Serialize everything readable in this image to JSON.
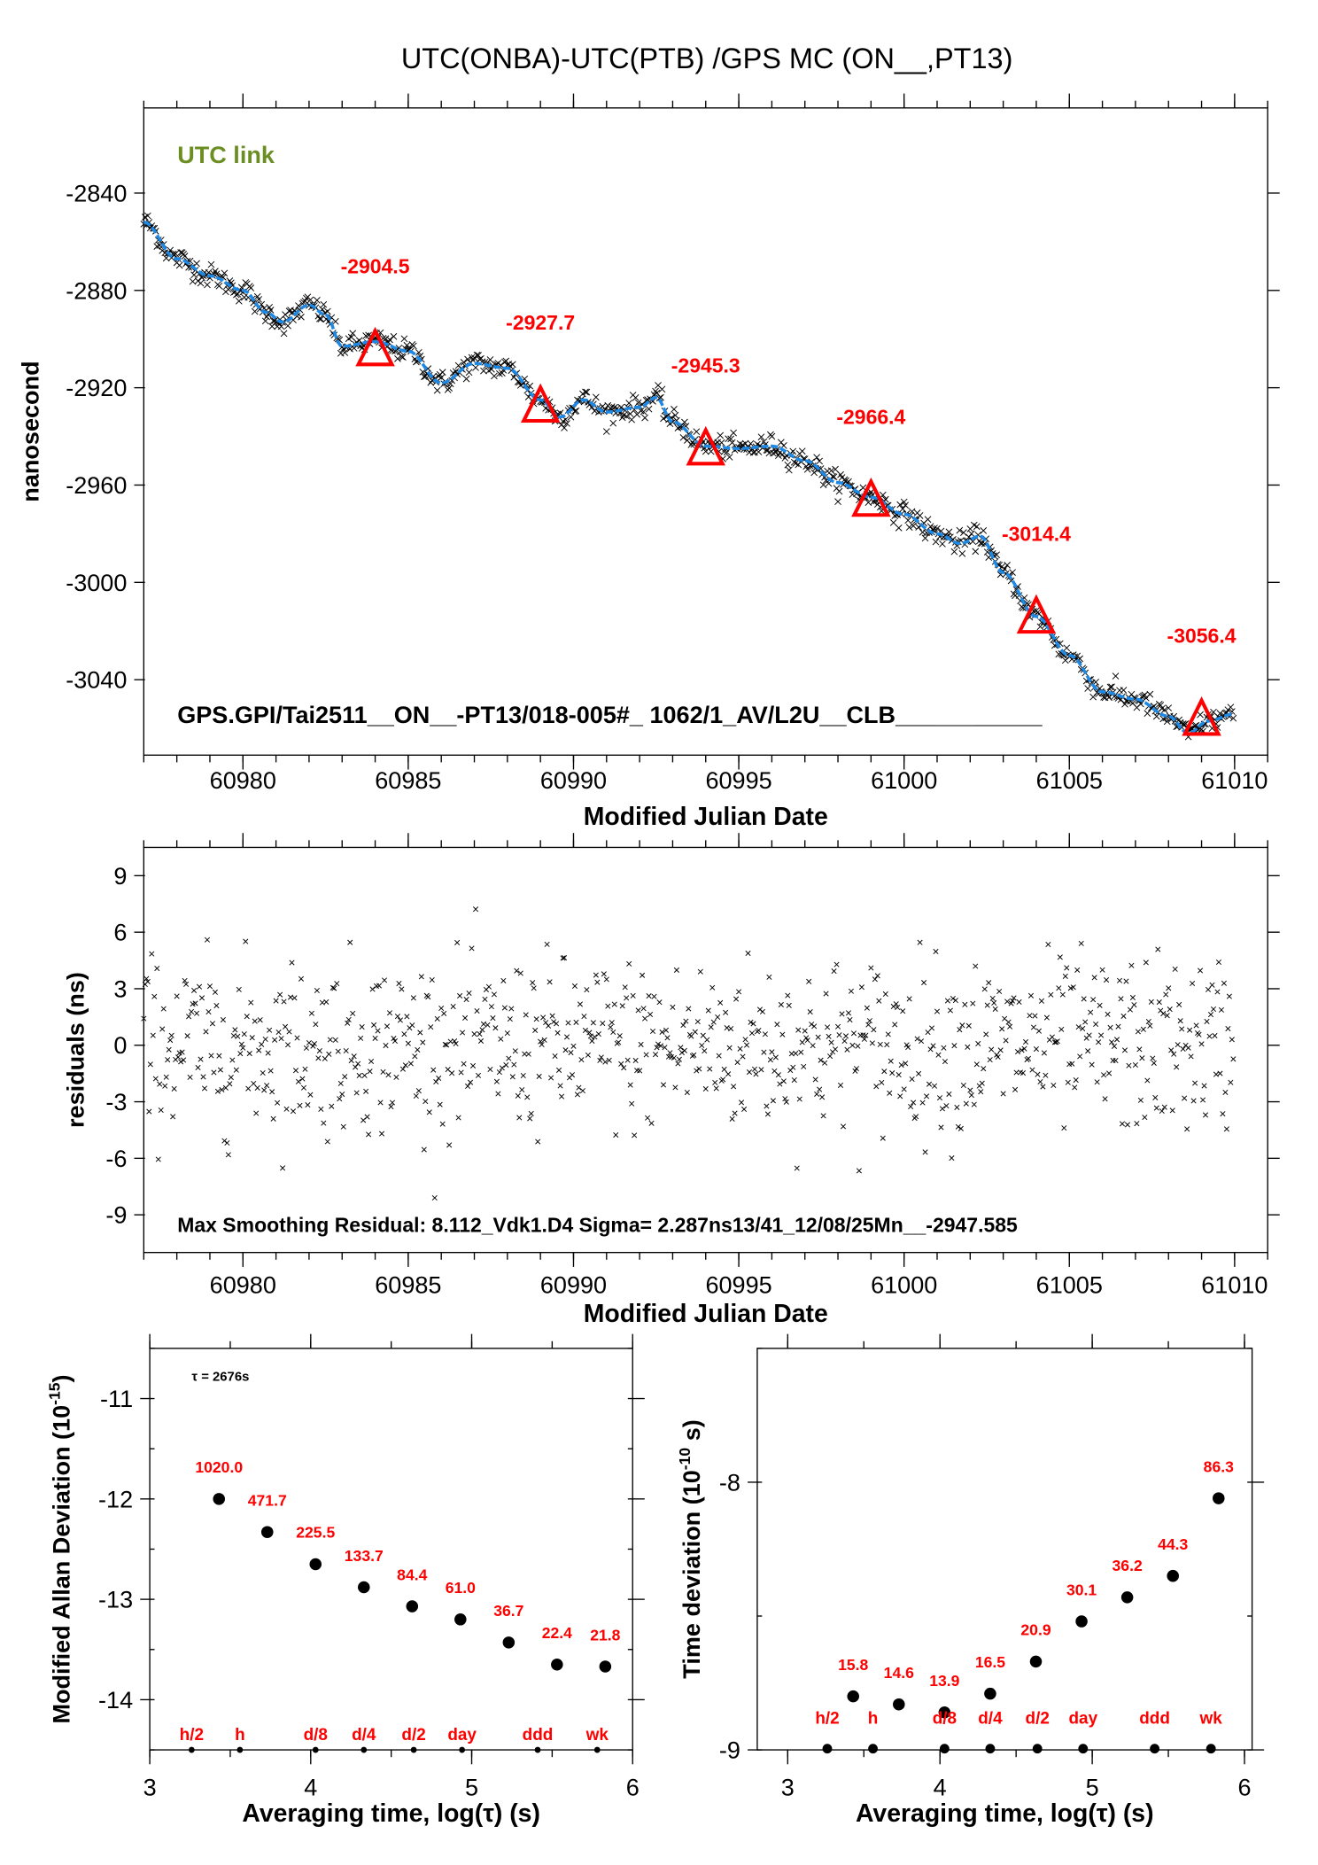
{
  "title": "UTC(ONBA)-UTC(PTB)  /GPS  MC  (ON__,PT13)",
  "colors": {
    "raw": "#000000",
    "smooth": "#1e88e5",
    "marker": "#ff0000",
    "label": "#ff0000",
    "link": "#6b8e23"
  },
  "chart_data": [
    {
      "type": "scatter",
      "legend_text": "UTC link",
      "footer": "GPS.GPI/Tai2511__ON__-PT13/018-005#_  1062/1_AV/L2U__CLB___________",
      "xlabel": "Modified Julian Date",
      "ylabel": "nanosecond",
      "xlim": [
        60977,
        61011
      ],
      "ylim": [
        -3071,
        -2805
      ],
      "xticks": [
        "60980",
        "60985",
        "60990",
        "60995",
        "61000",
        "61005",
        "61010"
      ],
      "yticks": [
        "-2840",
        "-2880",
        "-2920",
        "-2960",
        "-3000",
        "-3040"
      ],
      "smoothed_curve": [
        [
          60977,
          -2852
        ],
        [
          60978,
          -2867
        ],
        [
          60979,
          -2874
        ],
        [
          60980,
          -2880
        ],
        [
          60980.7,
          -2889
        ],
        [
          60981.2,
          -2893
        ],
        [
          60982,
          -2886
        ],
        [
          60982.5,
          -2890
        ],
        [
          60983,
          -2903
        ],
        [
          60984,
          -2901
        ],
        [
          60985,
          -2905
        ],
        [
          60986,
          -2918
        ],
        [
          60987,
          -2910
        ],
        [
          60988,
          -2912
        ],
        [
          60989,
          -2925
        ],
        [
          60989.6,
          -2932
        ],
        [
          60990.3,
          -2925
        ],
        [
          60991,
          -2930
        ],
        [
          60992,
          -2928
        ],
        [
          60992.5,
          -2924
        ],
        [
          60993,
          -2934
        ],
        [
          60994,
          -2944
        ],
        [
          60995,
          -2945
        ],
        [
          60996,
          -2944
        ],
        [
          60997,
          -2950
        ],
        [
          60998,
          -2959
        ],
        [
          60999,
          -2965
        ],
        [
          61000,
          -2972
        ],
        [
          61001,
          -2980
        ],
        [
          61001.7,
          -2984
        ],
        [
          61002.3,
          -2981
        ],
        [
          61003,
          -2996
        ],
        [
          61004,
          -3014
        ],
        [
          61005,
          -3030
        ],
        [
          61006,
          -3045
        ],
        [
          61007,
          -3048
        ],
        [
          61008,
          -3055
        ],
        [
          61008.6,
          -3062
        ],
        [
          61009.2,
          -3057
        ],
        [
          61010,
          -3054
        ]
      ],
      "markers": {
        "x": [
          60984,
          60989,
          60994,
          60999,
          61004,
          61009
        ],
        "y": [
          -2904.5,
          -2927.7,
          -2945.3,
          -2966.4,
          -3014.4,
          -3056.4
        ]
      },
      "marker_labels": [
        "-2904.5",
        "-2927.7",
        "-2945.3",
        "-2966.4",
        "-3014.4",
        "-3056.4"
      ]
    },
    {
      "type": "scatter",
      "annotation": "Max Smoothing Residual: 8.112_Vdk1.D4  Sigma= 2.287ns13/41_12/08/25Mn__-2947.585",
      "xlabel": "Modified Julian Date",
      "ylabel": "residuals (ns)",
      "xlim": [
        60977,
        61011
      ],
      "ylim": [
        -11,
        10.5
      ],
      "xticks": [
        "60980",
        "60985",
        "60990",
        "60995",
        "61000",
        "61005",
        "61010"
      ],
      "yticks": [
        "9",
        "6",
        "3",
        "0",
        "-3",
        "-6",
        "-9"
      ],
      "sigma": 2.287,
      "max_residual": 8.112
    },
    {
      "type": "scatter",
      "tau_label": "τ = 2676s",
      "xlabel": "Averaging time, log(τ) (s)",
      "ylabel": "Modified Allan Deviation (10",
      "ylabel_sup": "-15",
      "ylabel_end": ")",
      "xlim": [
        3,
        6
      ],
      "ylim": [
        -14.5,
        -10.5
      ],
      "xticks": [
        "3",
        "4",
        "5",
        "6"
      ],
      "yticks": [
        "-11",
        "-12",
        "-13",
        "-14"
      ],
      "x": [
        3.43,
        3.73,
        4.03,
        4.33,
        4.63,
        4.93,
        5.23,
        5.53,
        5.83
      ],
      "y": [
        -12.0,
        -12.33,
        -12.65,
        -12.88,
        -13.07,
        -13.2,
        -13.43,
        -13.65,
        -13.67
      ],
      "point_labels": [
        "1020.0",
        "471.7",
        "225.5",
        "133.7",
        "84.4",
        "61.0",
        "36.7",
        "22.4",
        "21.8"
      ],
      "interval_x": [
        3.26,
        3.56,
        4.03,
        4.33,
        4.64,
        4.94,
        5.41,
        5.78
      ],
      "interval_labels": [
        "h/2",
        "h",
        "d/8",
        "d/4",
        "d/2",
        "day",
        "ddd",
        "wk"
      ]
    },
    {
      "type": "scatter",
      "xlabel": "Averaging time, log(τ) (s)",
      "ylabel": "Time deviation (10",
      "ylabel_sup": "-10",
      "ylabel_end": " s)",
      "xlim": [
        2.8,
        6.05
      ],
      "ylim": [
        -9,
        -7.5
      ],
      "xticks": [
        "3",
        "4",
        "5",
        "6"
      ],
      "yticks": [
        "-8",
        "-9"
      ],
      "x": [
        3.43,
        3.73,
        4.03,
        4.33,
        4.63,
        4.93,
        5.23,
        5.53,
        5.83
      ],
      "y": [
        -8.8,
        -8.83,
        -8.86,
        -8.79,
        -8.67,
        -8.52,
        -8.43,
        -8.35,
        -8.06
      ],
      "point_labels": [
        "15.8",
        "14.6",
        "13.9",
        "16.5",
        "20.9",
        "30.1",
        "36.2",
        "44.3",
        "86.3"
      ],
      "interval_x": [
        3.26,
        3.56,
        4.03,
        4.33,
        4.64,
        4.94,
        5.41,
        5.78
      ],
      "interval_labels": [
        "h/2",
        "h",
        "d/8",
        "d/4",
        "d/2",
        "day",
        "ddd",
        "wk"
      ]
    }
  ]
}
